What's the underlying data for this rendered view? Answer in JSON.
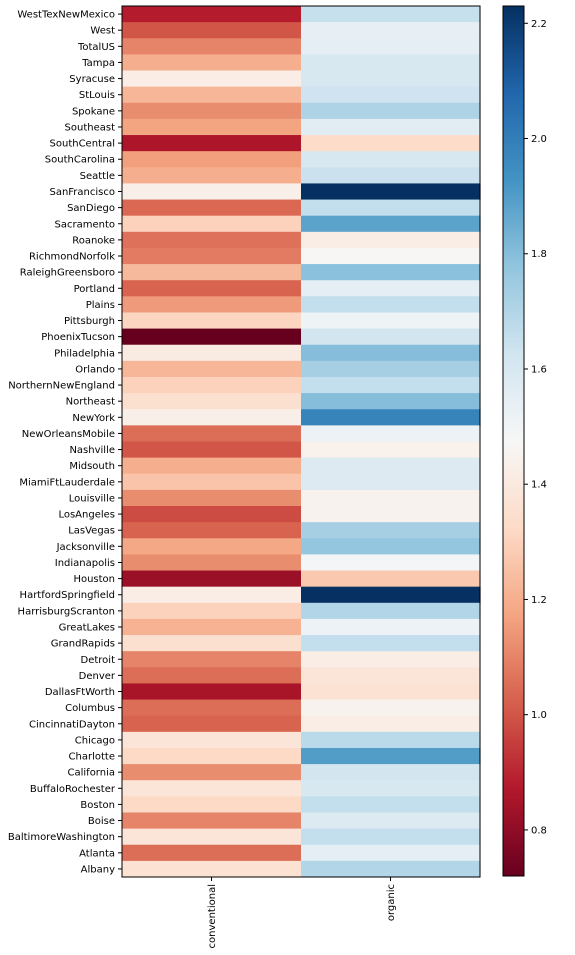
{
  "chart_data": {
    "type": "heatmap",
    "title": "",
    "xlabel": "",
    "ylabel": "",
    "colormap": "RdBu",
    "colormap_stops": [
      "#67001f",
      "#b2182b",
      "#d6604d",
      "#f4a582",
      "#fddbc7",
      "#f7f7f7",
      "#d1e5f0",
      "#92c5de",
      "#4393c3",
      "#2166ac",
      "#053061"
    ],
    "color_range": [
      0.72,
      2.23
    ],
    "colorbar_ticks": [
      "0.8",
      "1.0",
      "1.2",
      "1.4",
      "1.6",
      "1.8",
      "2.0",
      "2.2"
    ],
    "columns": [
      "conventional",
      "organic"
    ],
    "rows": [
      {
        "region": "WestTexNewMexico",
        "values": [
          0.88,
          1.65
        ]
      },
      {
        "region": "West",
        "values": [
          1.0,
          1.54
        ]
      },
      {
        "region": "TotalUS",
        "values": [
          1.1,
          1.55
        ]
      },
      {
        "region": "Tampa",
        "values": [
          1.2,
          1.6
        ]
      },
      {
        "region": "Syracuse",
        "values": [
          1.42,
          1.6
        ]
      },
      {
        "region": "StLouis",
        "values": [
          1.22,
          1.63
        ]
      },
      {
        "region": "Spokane",
        "values": [
          1.12,
          1.71
        ]
      },
      {
        "region": "Southeast",
        "values": [
          1.17,
          1.56
        ]
      },
      {
        "region": "SouthCentral",
        "values": [
          0.86,
          1.33
        ]
      },
      {
        "region": "SouthCarolina",
        "values": [
          1.16,
          1.6
        ]
      },
      {
        "region": "Seattle",
        "values": [
          1.2,
          1.64
        ]
      },
      {
        "region": "SanFrancisco",
        "values": [
          1.43,
          2.23
        ]
      },
      {
        "region": "SanDiego",
        "values": [
          1.04,
          1.66
        ]
      },
      {
        "region": "Sacramento",
        "values": [
          1.3,
          1.88
        ]
      },
      {
        "region": "Roanoke",
        "values": [
          1.06,
          1.42
        ]
      },
      {
        "region": "RichmondNorfolk",
        "values": [
          1.08,
          1.47
        ]
      },
      {
        "region": "RaleighGreensboro",
        "values": [
          1.23,
          1.79
        ]
      },
      {
        "region": "Portland",
        "values": [
          1.03,
          1.55
        ]
      },
      {
        "region": "Plains",
        "values": [
          1.15,
          1.66
        ]
      },
      {
        "region": "Pittsburgh",
        "values": [
          1.31,
          1.51
        ]
      },
      {
        "region": "PhoenixTucson",
        "values": [
          0.72,
          1.62
        ]
      },
      {
        "region": "Philadelphia",
        "values": [
          1.41,
          1.8
        ]
      },
      {
        "region": "Orlando",
        "values": [
          1.22,
          1.73
        ]
      },
      {
        "region": "NorthernNewEngland",
        "values": [
          1.3,
          1.66
        ]
      },
      {
        "region": "Northeast",
        "values": [
          1.35,
          1.8
        ]
      },
      {
        "region": "NewYork",
        "values": [
          1.43,
          1.98
        ]
      },
      {
        "region": "NewOrleansMobile",
        "values": [
          1.05,
          1.52
        ]
      },
      {
        "region": "Nashville",
        "values": [
          1.0,
          1.44
        ]
      },
      {
        "region": "Midsouth",
        "values": [
          1.2,
          1.58
        ]
      },
      {
        "region": "MiamiFtLauderdale",
        "values": [
          1.26,
          1.58
        ]
      },
      {
        "region": "Louisville",
        "values": [
          1.12,
          1.45
        ]
      },
      {
        "region": "LosAngeles",
        "values": [
          0.98,
          1.45
        ]
      },
      {
        "region": "LasVegas",
        "values": [
          1.03,
          1.73
        ]
      },
      {
        "region": "Jacksonville",
        "values": [
          1.18,
          1.77
        ]
      },
      {
        "region": "Indianapolis",
        "values": [
          1.12,
          1.49
        ]
      },
      {
        "region": "Houston",
        "values": [
          0.82,
          1.27
        ]
      },
      {
        "region": "HartfordSpringfield",
        "values": [
          1.42,
          2.23
        ]
      },
      {
        "region": "HarrisburgScranton",
        "values": [
          1.3,
          1.7
        ]
      },
      {
        "region": "GreatLakes",
        "values": [
          1.21,
          1.52
        ]
      },
      {
        "region": "GrandRapids",
        "values": [
          1.35,
          1.66
        ]
      },
      {
        "region": "Detroit",
        "values": [
          1.1,
          1.42
        ]
      },
      {
        "region": "Denver",
        "values": [
          1.05,
          1.38
        ]
      },
      {
        "region": "DallasFtWorth",
        "values": [
          0.85,
          1.36
        ]
      },
      {
        "region": "Columbus",
        "values": [
          1.05,
          1.45
        ]
      },
      {
        "region": "CincinnatiDayton",
        "values": [
          1.03,
          1.42
        ]
      },
      {
        "region": "Chicago",
        "values": [
          1.38,
          1.68
        ]
      },
      {
        "region": "Charlotte",
        "values": [
          1.32,
          1.9
        ]
      },
      {
        "region": "California",
        "values": [
          1.12,
          1.62
        ]
      },
      {
        "region": "BuffaloRochester",
        "values": [
          1.38,
          1.6
        ]
      },
      {
        "region": "Boston",
        "values": [
          1.32,
          1.66
        ]
      },
      {
        "region": "Boise",
        "values": [
          1.1,
          1.58
        ]
      },
      {
        "region": "BaltimoreWashington",
        "values": [
          1.38,
          1.66
        ]
      },
      {
        "region": "Atlanta",
        "values": [
          1.05,
          1.55
        ]
      },
      {
        "region": "Albany",
        "values": [
          1.36,
          1.7
        ]
      }
    ]
  }
}
